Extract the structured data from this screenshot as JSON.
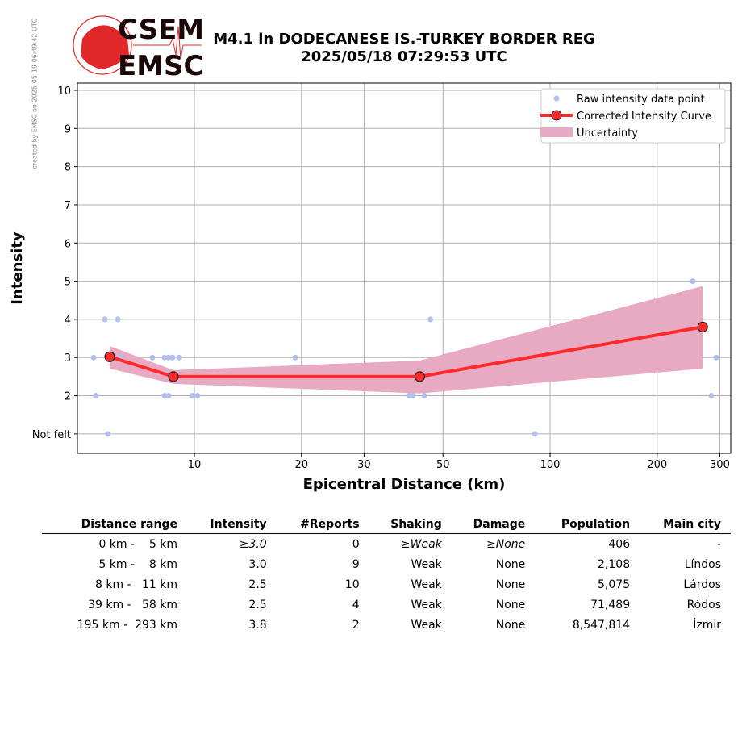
{
  "watermark": "created by EMSC on 2025-05-19 06:49:42 UTC",
  "logo": {
    "line1": "CSEM",
    "line2": "EMSC"
  },
  "title_line1": "M4.1 in DODECANESE IS.-TURKEY BORDER REG",
  "title_line2": "2025/05/18 07:29:53 UTC",
  "chart_data": {
    "type": "scatter",
    "xlabel": "Epicentral Distance (km)",
    "ylabel": "Intensity",
    "xscale": "log",
    "xlim": [
      4.69,
      322
    ],
    "ylim": [
      0.49,
      10.19
    ],
    "grid": true,
    "legend": "top-right",
    "xticks": [
      10,
      20,
      30,
      50,
      100,
      200,
      300
    ],
    "xtick_labels": [
      "10",
      "20",
      "30",
      "50",
      "100",
      "200",
      "300"
    ],
    "yticks": [
      1,
      2,
      3,
      4,
      5,
      6,
      7,
      8,
      9,
      10
    ],
    "ytick_labels": [
      "Not felt",
      "2",
      "3",
      "4",
      "5",
      "6",
      "7",
      "8",
      "9",
      "10"
    ],
    "legend_entries": [
      "Raw intensity data point",
      "Corrected Intensity Curve",
      "Uncertainty"
    ],
    "colors": {
      "raw": "#b4bfee",
      "curve": "#ff2a2a",
      "band": "#e8a9c3"
    },
    "raw_points": [
      [
        5.21,
        3
      ],
      [
        5.28,
        2
      ],
      [
        5.6,
        4
      ],
      [
        5.71,
        1
      ],
      [
        6.09,
        4
      ],
      [
        6.22,
        3
      ],
      [
        7.62,
        3
      ],
      [
        8.24,
        3
      ],
      [
        8.24,
        2
      ],
      [
        8.46,
        3
      ],
      [
        8.46,
        2
      ],
      [
        8.68,
        3
      ],
      [
        9.06,
        3
      ],
      [
        9.84,
        2
      ],
      [
        10.2,
        2
      ],
      [
        19.2,
        3
      ],
      [
        40.1,
        2
      ],
      [
        41.1,
        2
      ],
      [
        44.3,
        2
      ],
      [
        46.1,
        4
      ],
      [
        90.6,
        1
      ],
      [
        252,
        5
      ],
      [
        284,
        2
      ],
      [
        293,
        3
      ]
    ],
    "curve": {
      "x": [
        5.78,
        8.73,
        43.0,
        268.5
      ],
      "y": [
        3.02,
        2.5,
        2.5,
        3.8
      ]
    },
    "band": {
      "x": [
        5.78,
        8.73,
        43.0,
        268.5
      ],
      "upper": [
        3.3,
        2.67,
        2.92,
        4.87
      ],
      "lower": [
        2.71,
        2.31,
        2.06,
        2.71
      ]
    }
  },
  "table": {
    "headers": [
      "Distance range",
      "Intensity",
      "#Reports",
      "Shaking",
      "Damage",
      "Population",
      "Main city"
    ],
    "rows": [
      [
        "0 km -    5 km",
        "≥3.0",
        "0",
        "≥Weak",
        "≥None",
        "406",
        "-"
      ],
      [
        "5 km -    8 km",
        "3.0",
        "9",
        "Weak",
        "None",
        "2,108",
        "Líndos"
      ],
      [
        "8 km -   11 km",
        "2.5",
        "10",
        "Weak",
        "None",
        "5,075",
        "Lárdos"
      ],
      [
        "39 km -   58 km",
        "2.5",
        "4",
        "Weak",
        "None",
        "71,489",
        "Ródos"
      ],
      [
        "195 km -  293 km",
        "3.8",
        "2",
        "Weak",
        "None",
        "8,547,814",
        "İzmir"
      ]
    ]
  }
}
